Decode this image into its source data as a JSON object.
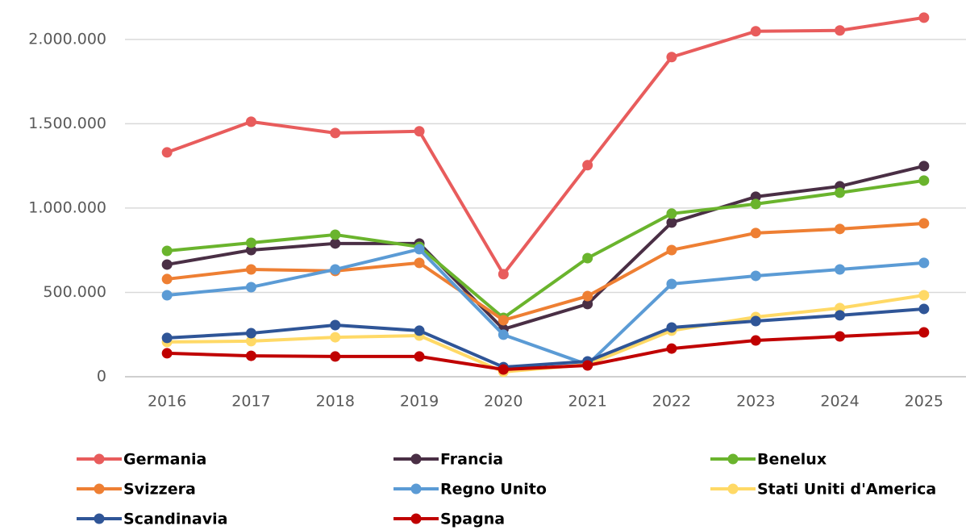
{
  "chart_data": {
    "type": "line",
    "categories": [
      "2016",
      "2017",
      "2018",
      "2019",
      "2020",
      "2021",
      "2022",
      "2023",
      "2024",
      "2025"
    ],
    "series": [
      {
        "name": "Germania",
        "color": "#e85c5c",
        "values": [
          1330000,
          1512000,
          1445000,
          1455000,
          608000,
          1254000,
          1895000,
          2048000,
          2053000,
          2129000
        ]
      },
      {
        "name": "Francia",
        "color": "#4a2f45",
        "values": [
          665000,
          751000,
          790000,
          790000,
          282000,
          431000,
          914000,
          1067000,
          1129000,
          1249000
        ]
      },
      {
        "name": "Benelux",
        "color": "#6ab42d",
        "values": [
          746000,
          794000,
          842000,
          770000,
          349000,
          703000,
          967000,
          1024000,
          1091000,
          1163000
        ]
      },
      {
        "name": "Svizzera",
        "color": "#ee7f33",
        "values": [
          579000,
          636000,
          627000,
          675000,
          335000,
          478000,
          751000,
          852000,
          876000,
          909000
        ]
      },
      {
        "name": "Regno Unito",
        "color": "#5b9bd5",
        "values": [
          483000,
          531000,
          636000,
          756000,
          249000,
          72000,
          550000,
          598000,
          636000,
          675000
        ]
      },
      {
        "name": "Stati Uniti d'America",
        "color": "#ffd966",
        "values": [
          206000,
          211000,
          234000,
          244000,
          29000,
          72000,
          273000,
          354000,
          407000,
          483000
        ]
      },
      {
        "name": "Scandinavia",
        "color": "#2f5597",
        "values": [
          230000,
          258000,
          306000,
          273000,
          57000,
          91000,
          292000,
          330000,
          364000,
          402000
        ]
      },
      {
        "name": "Spagna",
        "color": "#c00000",
        "values": [
          139000,
          124000,
          120000,
          120000,
          43000,
          67000,
          167000,
          215000,
          239000,
          263000
        ]
      }
    ],
    "ylim": [
      0,
      2200000
    ],
    "yticks": [
      0,
      {
        "value": 500000,
        "label": "500.000"
      },
      {
        "value": 1000000,
        "label": "1.000.000"
      },
      {
        "value": 1500000,
        "label": "1.500.000"
      },
      {
        "value": 2000000,
        "label": "2.000.000"
      }
    ],
    "grid": true
  }
}
